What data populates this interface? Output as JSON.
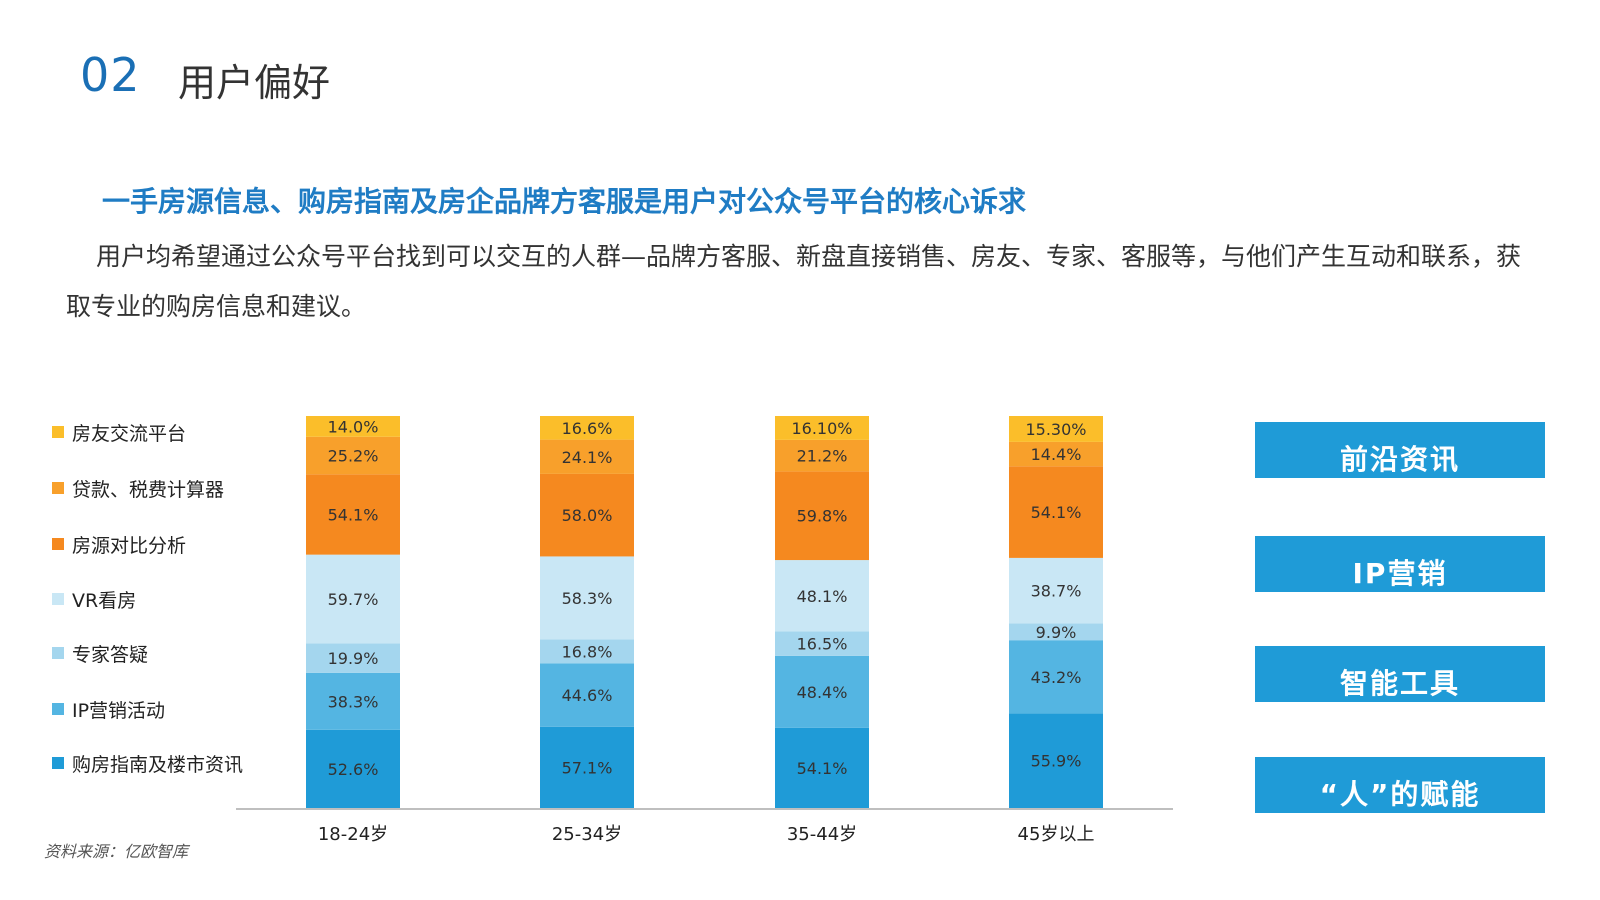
{
  "header": {
    "section_number": "02",
    "section_title": "用户偏好"
  },
  "headline": "一手房源信息、购房指南及房企品牌方客服是用户对公众号平台的核心诉求",
  "body_text": "用户均希望通过公众号平台找到可以交互的人群—品牌方客服、新盘直接销售、房友、专家、客服等，与他们产生互动和联系，获取专业的购房信息和建议。",
  "source": "资料来源：亿欧智库",
  "side_buttons": [
    {
      "label": "前沿资讯"
    },
    {
      "label": "IP营销"
    },
    {
      "label": "智能工具"
    },
    {
      "label": "“人”的赋能"
    }
  ],
  "colors": {
    "accent": "#1a6fb5",
    "headline": "#1f7cc4",
    "button": "#1f9bd7"
  },
  "chart_data": {
    "type": "bar",
    "stacked": true,
    "categories": [
      "18-24岁",
      "25-34岁",
      "35-44岁",
      "45岁以上"
    ],
    "legend_position": "left",
    "series": [
      {
        "name": "购房指南及楼市资讯",
        "color": "#1f9bd7",
        "labels": [
          "52.6%",
          "57.1%",
          "54.1%",
          "55.9%"
        ],
        "values": [
          52.6,
          57.1,
          54.1,
          55.9
        ]
      },
      {
        "name": "IP营销活动",
        "color": "#54b5e2",
        "labels": [
          "38.3%",
          "44.6%",
          "48.4%",
          "43.2%"
        ],
        "values": [
          38.3,
          44.6,
          48.4,
          43.2
        ]
      },
      {
        "name": "专家答疑",
        "color": "#a4d6ee",
        "labels": [
          "19.9%",
          "16.8%",
          "16.5%",
          "9.9%"
        ],
        "values": [
          19.9,
          16.8,
          16.5,
          9.9
        ]
      },
      {
        "name": "VR看房",
        "color": "#c9e7f5",
        "labels": [
          "59.7%",
          "58.3%",
          "48.1%",
          "38.7%"
        ],
        "values": [
          59.7,
          58.3,
          48.1,
          38.7
        ]
      },
      {
        "name": "房源对比分析",
        "color": "#f5891f",
        "labels": [
          "54.1%",
          "58.0%",
          "59.8%",
          "54.1%"
        ],
        "values": [
          54.1,
          58.0,
          59.8,
          54.1
        ]
      },
      {
        "name": "贷款、税费计算器",
        "color": "#f8a02b",
        "labels": [
          "25.2%",
          "24.1%",
          "21.2%",
          "14.4%"
        ],
        "values": [
          25.2,
          24.1,
          21.2,
          14.4
        ]
      },
      {
        "name": "房友交流平台",
        "color": "#fbbe2a",
        "labels": [
          "14.0%",
          "16.6%",
          "16.10%",
          "15.30%"
        ],
        "values": [
          14.0,
          16.6,
          16.1,
          15.3
        ]
      }
    ]
  }
}
